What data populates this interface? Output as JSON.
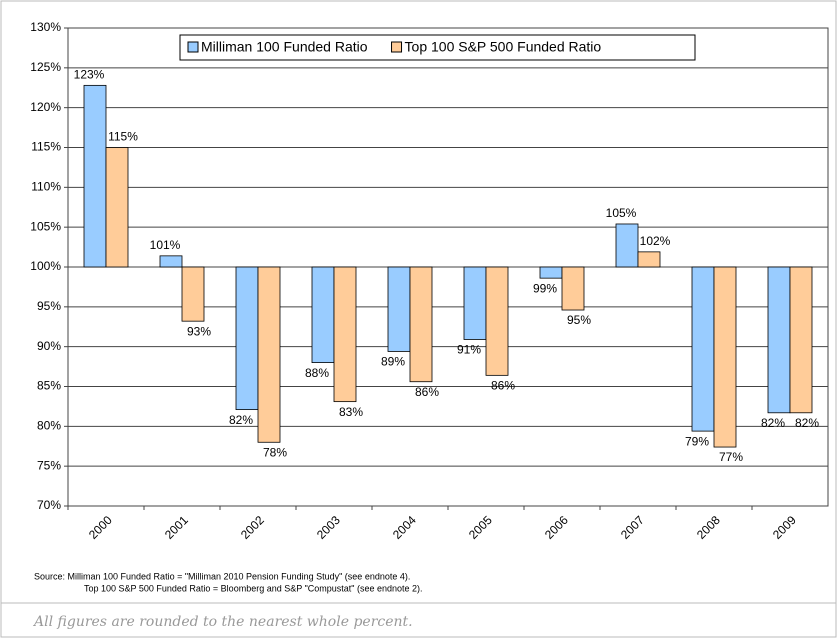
{
  "chart_data": {
    "type": "bar",
    "categories": [
      "2000",
      "2001",
      "2002",
      "2003",
      "2004",
      "2005",
      "2006",
      "2007",
      "2008",
      "2009"
    ],
    "series": [
      {
        "name": "Milliman 100 Funded Ratio",
        "color": "#99ccff",
        "values": [
          122.8,
          101.4,
          82.1,
          88,
          89.4,
          90.9,
          98.6,
          105.4,
          79.4,
          81.7
        ],
        "value_labels": [
          "123%",
          "101%",
          "82%",
          "88%",
          "89%",
          "91%",
          "99%",
          "105%",
          "79%",
          "82%"
        ]
      },
      {
        "name": "Top 100 S&P 500 Funded Ratio",
        "color": "#ffcc99",
        "values": [
          115,
          93.2,
          78,
          83.1,
          85.6,
          86.4,
          94.6,
          101.9,
          77.4,
          81.7
        ],
        "value_labels": [
          "115%",
          "93%",
          "78%",
          "83%",
          "86%",
          "86%",
          "95%",
          "102%",
          "77%",
          "82%"
        ]
      }
    ],
    "baseline": 100,
    "ylim": [
      70,
      130
    ],
    "yticks": [
      {
        "value": 70,
        "label": "70%"
      },
      {
        "value": 75,
        "label": "75%"
      },
      {
        "value": 80,
        "label": "80%"
      },
      {
        "value": 85,
        "label": "85%"
      },
      {
        "value": 90,
        "label": "90%"
      },
      {
        "value": 95,
        "label": "95%"
      },
      {
        "value": 100,
        "label": "100%"
      },
      {
        "value": 105,
        "label": "105%"
      },
      {
        "value": 110,
        "label": "110%"
      },
      {
        "value": 115,
        "label": "115%"
      },
      {
        "value": 120,
        "label": "120%"
      },
      {
        "value": 125,
        "label": "125%"
      },
      {
        "value": 130,
        "label": "130%"
      }
    ],
    "grid": true,
    "legend": "top",
    "source_lines": [
      "Source: Milliman 100 Funded Ratio = \"Milliman 2010 Pension Funding Study\" (see endnote 4).",
      "Top 100 S&P 500 Funded Ratio = Bloomberg and S&P \"Compustat\" (see endnote 2)."
    ],
    "note": "All figures are rounded to the nearest whole percent."
  }
}
